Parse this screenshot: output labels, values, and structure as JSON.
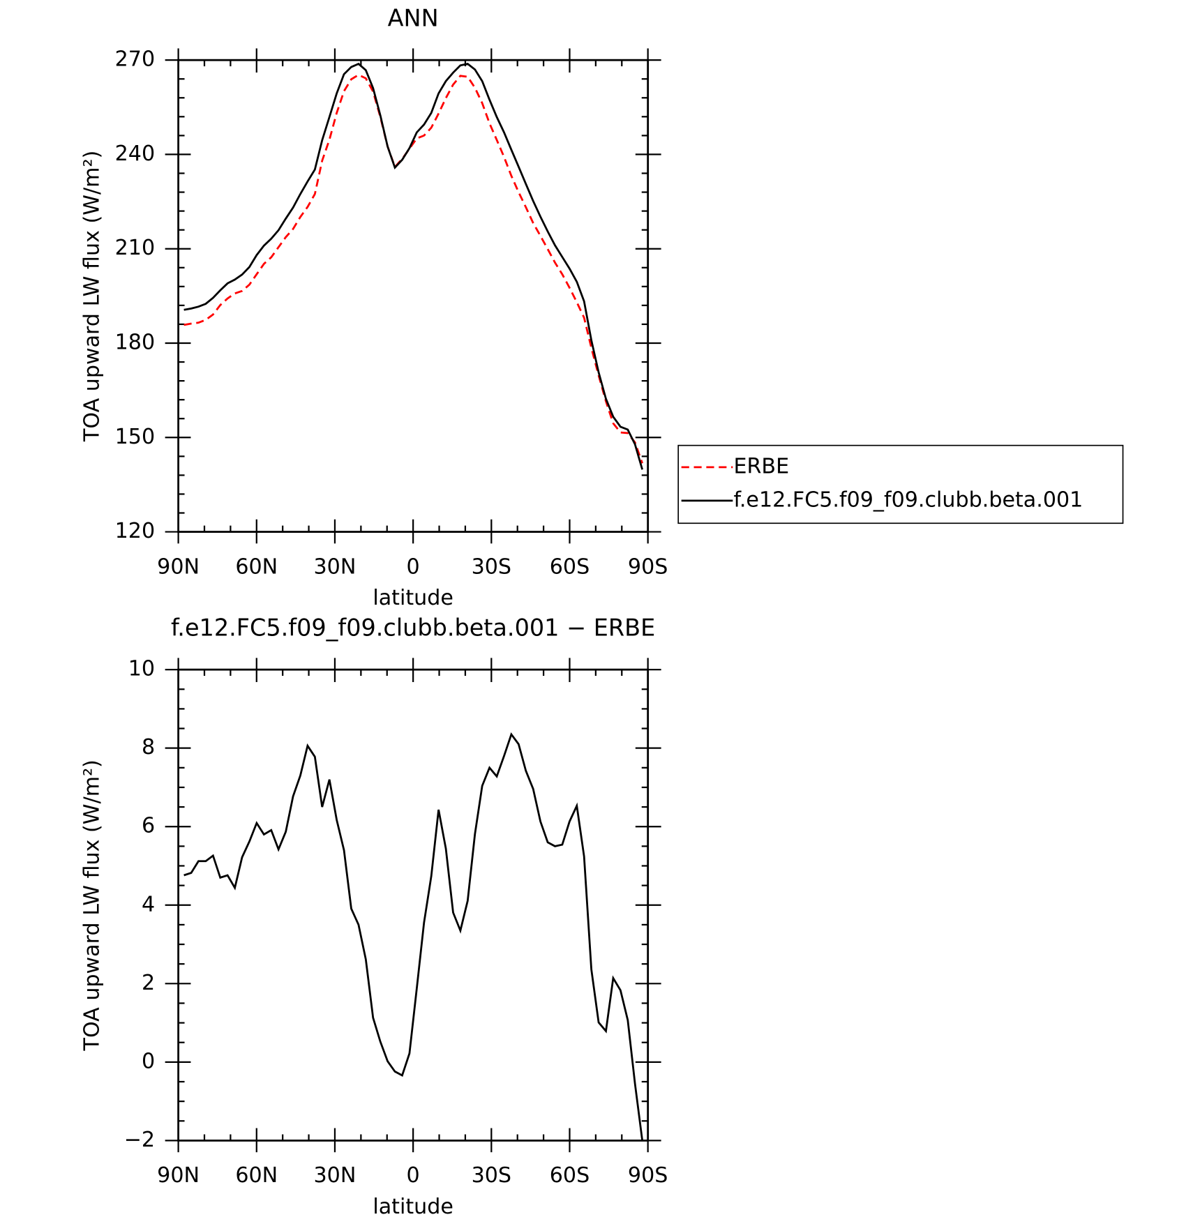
{
  "chart_data": [
    {
      "type": "line",
      "title": "ANN",
      "xlabel": "latitude",
      "ylabel": "TOA upward LW flux (W/m²)",
      "x": [
        87.86,
        85.07,
        82.28,
        79.49,
        76.7,
        73.92,
        71.13,
        68.34,
        65.55,
        62.76,
        59.97,
        57.18,
        54.39,
        51.6,
        48.81,
        46.02,
        43.24,
        40.45,
        37.66,
        34.87,
        32.08,
        29.29,
        26.5,
        23.71,
        20.92,
        18.14,
        15.35,
        12.56,
        9.77,
        6.98,
        4.19,
        1.4,
        -1.39,
        -4.18,
        -6.97,
        -9.76,
        -12.55,
        -15.34,
        -18.12,
        -20.91,
        -23.7,
        -26.49,
        -29.28,
        -32.07,
        -34.86,
        -37.65,
        -40.44,
        -43.23,
        -46.02,
        -48.81,
        -51.6,
        -54.39,
        -57.17,
        -59.96,
        -62.75,
        -65.54,
        -68.33,
        -71.12,
        -73.91,
        -76.7,
        -79.49,
        -82.28,
        -85.07,
        -87.86
      ],
      "series": [
        {
          "name": "ERBE",
          "color": "#ff0000",
          "style": "dashed",
          "values": [
            185.8,
            186.2,
            186.5,
            187.4,
            189.1,
            192.1,
            194.2,
            195.8,
            196.6,
            198.6,
            201.9,
            205.2,
            207.3,
            210.5,
            213.7,
            216.3,
            220.1,
            223.3,
            227.4,
            238.0,
            244.7,
            253.2,
            260.1,
            263.9,
            265.3,
            264.2,
            260.0,
            251.9,
            242.5,
            236.0,
            238.6,
            241.8,
            245.1,
            246.0,
            248.5,
            253.0,
            257.9,
            262.2,
            265.0,
            264.7,
            261.2,
            256.3,
            249.9,
            244.6,
            239.2,
            233.2,
            228.0,
            223.2,
            218.2,
            214.1,
            209.9,
            205.6,
            201.9,
            197.6,
            193.0,
            188.1,
            178.5,
            169.7,
            161.5,
            154.5,
            151.6,
            151.4,
            148.4,
            141.8
          ]
        },
        {
          "name": "f.e12.FC5.f09_f09.clubb.beta.001",
          "color": "#000000",
          "style": "solid",
          "values": [
            190.6,
            191.0,
            191.6,
            192.5,
            194.4,
            196.8,
            199.0,
            200.2,
            201.8,
            204.2,
            208.0,
            211.0,
            213.2,
            215.9,
            219.6,
            223.1,
            227.4,
            231.4,
            235.2,
            244.5,
            251.9,
            259.4,
            265.5,
            267.8,
            268.8,
            266.8,
            261.1,
            252.4,
            242.5,
            235.8,
            238.3,
            242.0,
            247.0,
            249.5,
            253.2,
            259.4,
            263.3,
            266.0,
            268.3,
            268.8,
            267.0,
            263.3,
            257.4,
            251.9,
            247.0,
            241.5,
            236.1,
            230.6,
            225.2,
            220.2,
            215.5,
            211.1,
            207.4,
            203.7,
            199.5,
            193.3,
            180.9,
            170.7,
            162.3,
            156.6,
            153.4,
            152.5,
            147.8,
            139.8
          ]
        }
      ],
      "xlim": [
        90,
        -90
      ],
      "xticks": [
        {
          "value": 90,
          "label": "90N"
        },
        {
          "value": 60,
          "label": "60N"
        },
        {
          "value": 30,
          "label": "30N"
        },
        0,
        {
          "value": -30,
          "label": "30S"
        },
        {
          "value": -60,
          "label": "60S"
        },
        {
          "value": -90,
          "label": "90S"
        }
      ],
      "ylim": [
        120,
        270
      ],
      "yticks": [
        120,
        150,
        180,
        210,
        240,
        270
      ],
      "legend": "right"
    },
    {
      "type": "line",
      "title": "f.e12.FC5.f09_f09.clubb.beta.001 − ERBE",
      "xlabel": "latitude",
      "ylabel": "TOA upward LW flux (W/m²)",
      "x": [
        87.86,
        85.07,
        82.28,
        79.49,
        76.7,
        73.92,
        71.13,
        68.34,
        65.55,
        62.76,
        59.97,
        57.18,
        54.39,
        51.6,
        48.81,
        46.02,
        43.24,
        40.45,
        37.66,
        34.87,
        32.08,
        29.29,
        26.5,
        23.71,
        20.92,
        18.14,
        15.35,
        12.56,
        9.77,
        6.98,
        4.19,
        1.4,
        -1.39,
        -4.18,
        -6.97,
        -9.76,
        -12.55,
        -15.34,
        -18.12,
        -20.91,
        -23.7,
        -26.49,
        -29.28,
        -32.07,
        -34.86,
        -37.65,
        -40.44,
        -43.23,
        -46.02,
        -48.81,
        -51.6,
        -54.39,
        -57.17,
        -59.96,
        -62.75,
        -65.54,
        -68.33,
        -71.12,
        -73.91,
        -76.7,
        -79.49,
        -82.28,
        -85.07,
        -87.86
      ],
      "series": [
        {
          "color": "#000000",
          "style": "solid",
          "values": [
            4.76,
            4.82,
            5.12,
            5.12,
            5.26,
            4.7,
            4.76,
            4.44,
            5.22,
            5.62,
            6.09,
            5.8,
            5.91,
            5.42,
            5.87,
            6.77,
            7.3,
            8.06,
            7.78,
            6.5,
            7.2,
            6.17,
            5.4,
            3.91,
            3.5,
            2.62,
            1.13,
            0.52,
            0.02,
            -0.24,
            -0.34,
            0.22,
            1.87,
            3.55,
            4.74,
            6.43,
            5.44,
            3.81,
            3.35,
            4.11,
            5.81,
            7.04,
            7.5,
            7.28,
            7.8,
            8.35,
            8.1,
            7.42,
            6.96,
            6.13,
            5.6,
            5.5,
            5.54,
            6.13,
            6.53,
            5.24,
            2.36,
            1.01,
            0.79,
            2.14,
            1.83,
            1.07,
            -0.56,
            -2.0
          ]
        }
      ],
      "xlim": [
        90,
        -90
      ],
      "xticks": [
        {
          "value": 90,
          "label": "90N"
        },
        {
          "value": 60,
          "label": "60N"
        },
        {
          "value": 30,
          "label": "30N"
        },
        0,
        {
          "value": -30,
          "label": "30S"
        },
        {
          "value": -60,
          "label": "60S"
        },
        {
          "value": -90,
          "label": "90S"
        }
      ],
      "ylim": [
        -2,
        10
      ],
      "yticks": [
        {
          "value": -2,
          "label": "−2"
        },
        0,
        2,
        4,
        6,
        8,
        10
      ]
    }
  ]
}
